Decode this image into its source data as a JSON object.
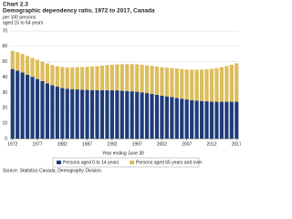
{
  "chart_data": {
    "type": "stacked-bar",
    "title": "Chart 2.3",
    "subtitle": "Demographic dependency ratio, 1972 to 2017, Canada",
    "y_label_line1": "per 100 persons",
    "y_label_line2": "aged 15 to 64 years",
    "x_label": "Year ending June 30",
    "source": "Source: Statistics Canada, Demography Division.",
    "categories": [
      "1972",
      null,
      null,
      null,
      null,
      "1977",
      null,
      null,
      null,
      null,
      "1982",
      null,
      null,
      null,
      null,
      "1987",
      null,
      null,
      null,
      null,
      "1992",
      null,
      null,
      null,
      null,
      "1997",
      null,
      null,
      null,
      null,
      "2002",
      null,
      null,
      null,
      null,
      "2007",
      null,
      null,
      null,
      null,
      "2012",
      null,
      null,
      null,
      null,
      "2017"
    ],
    "series": [
      {
        "name": "Persons aged 0 to 14 years",
        "color": "#1f3b7a",
        "values": [
          45.3,
          44.2,
          43.0,
          41.6,
          40.2,
          38.8,
          37.4,
          36.0,
          34.8,
          33.8,
          33.0,
          32.5,
          32.2,
          32.0,
          31.8,
          31.7,
          31.6,
          31.5,
          31.5,
          31.5,
          31.5,
          31.4,
          31.2,
          31.0,
          30.8,
          30.5,
          30.1,
          29.6,
          29.1,
          28.6,
          28.0,
          27.5,
          27.0,
          26.5,
          26.0,
          25.5,
          25.1,
          24.8,
          24.5,
          24.3,
          24.1,
          24.0,
          24.0,
          24.0,
          24.0,
          24.1
        ]
      },
      {
        "name": "Persons aged 65 years and over",
        "color": "#dcbd5c",
        "values": [
          11.8,
          12.0,
          12.1,
          12.2,
          12.3,
          12.5,
          12.7,
          12.9,
          13.1,
          13.3,
          13.6,
          13.9,
          14.2,
          14.5,
          14.8,
          15.1,
          15.4,
          15.7,
          16.0,
          16.3,
          16.6,
          16.9,
          17.2,
          17.5,
          17.7,
          17.9,
          18.0,
          18.1,
          18.2,
          18.3,
          18.5,
          18.7,
          18.9,
          19.1,
          19.3,
          19.5,
          19.8,
          20.1,
          20.4,
          20.8,
          21.3,
          21.9,
          22.5,
          23.2,
          24.0,
          24.9
        ]
      }
    ],
    "ylim": [
      0,
      70
    ],
    "yticks": [
      0,
      10,
      20,
      30,
      40,
      50,
      60,
      70
    ],
    "grid": true
  }
}
